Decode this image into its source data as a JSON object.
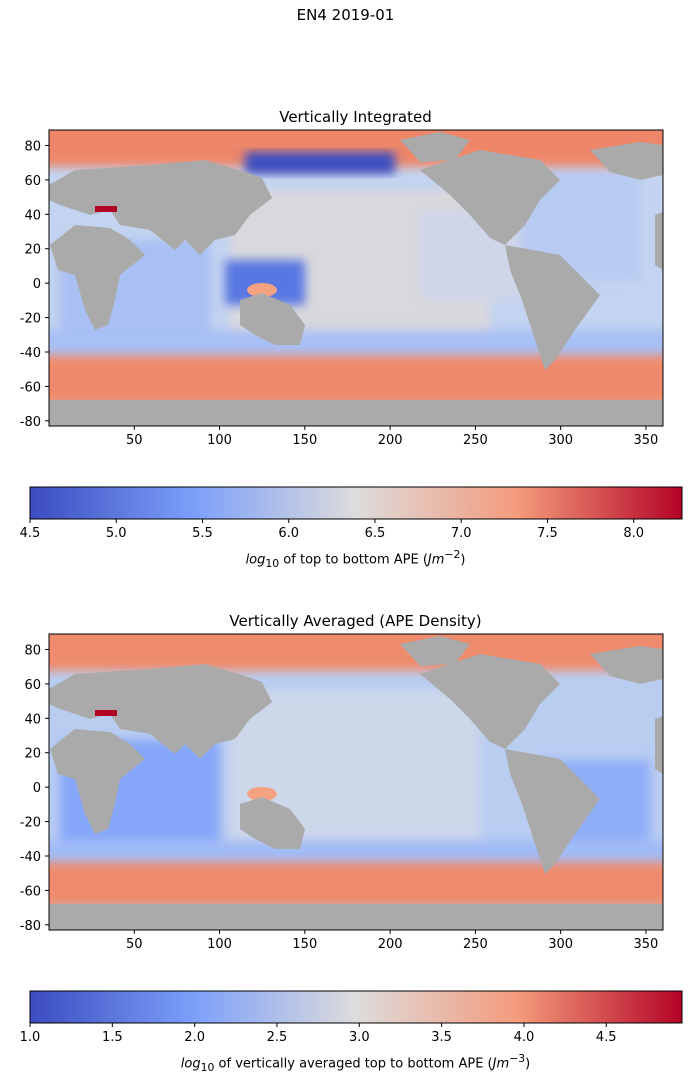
{
  "suptitle": "EN4 2019-01",
  "chart_data": [
    {
      "type": "heatmap",
      "title": "Vertically Integrated",
      "x_ticks": [
        50,
        100,
        150,
        200,
        250,
        300,
        350
      ],
      "y_ticks": [
        -80,
        -60,
        -40,
        -20,
        0,
        20,
        40,
        60,
        80
      ],
      "xlim": [
        0,
        360
      ],
      "ylim": [
        -83,
        89
      ],
      "land_color": "#aaaaaa",
      "colormap": "coolwarm",
      "colorbar": {
        "range": [
          4.5,
          8.28
        ],
        "ticks": [
          "4.5",
          "5.0",
          "5.5",
          "6.0",
          "6.5",
          "7.0",
          "7.5",
          "8.0"
        ],
        "label_prefix": "log",
        "label_sub": "10",
        "label_text": " of top to bottom APE (",
        "label_unit": "Jm",
        "label_sup": "−2",
        "label_close": ")"
      }
    },
    {
      "type": "heatmap",
      "title": "Vertically Averaged (APE Density)",
      "x_ticks": [
        50,
        100,
        150,
        200,
        250,
        300,
        350
      ],
      "y_ticks": [
        -80,
        -60,
        -40,
        -20,
        0,
        20,
        40,
        60,
        80
      ],
      "xlim": [
        0,
        360
      ],
      "ylim": [
        -83,
        89
      ],
      "land_color": "#aaaaaa",
      "colormap": "coolwarm",
      "colorbar": {
        "range": [
          1.0,
          4.96
        ],
        "ticks": [
          "1.0",
          "1.5",
          "2.0",
          "2.5",
          "3.0",
          "3.5",
          "4.0",
          "4.5"
        ],
        "label_prefix": "log",
        "label_sub": "10",
        "label_text": " of vertically averaged top to bottom APE (",
        "label_unit": "Jm",
        "label_sup": "−3",
        "label_close": ")"
      }
    }
  ]
}
